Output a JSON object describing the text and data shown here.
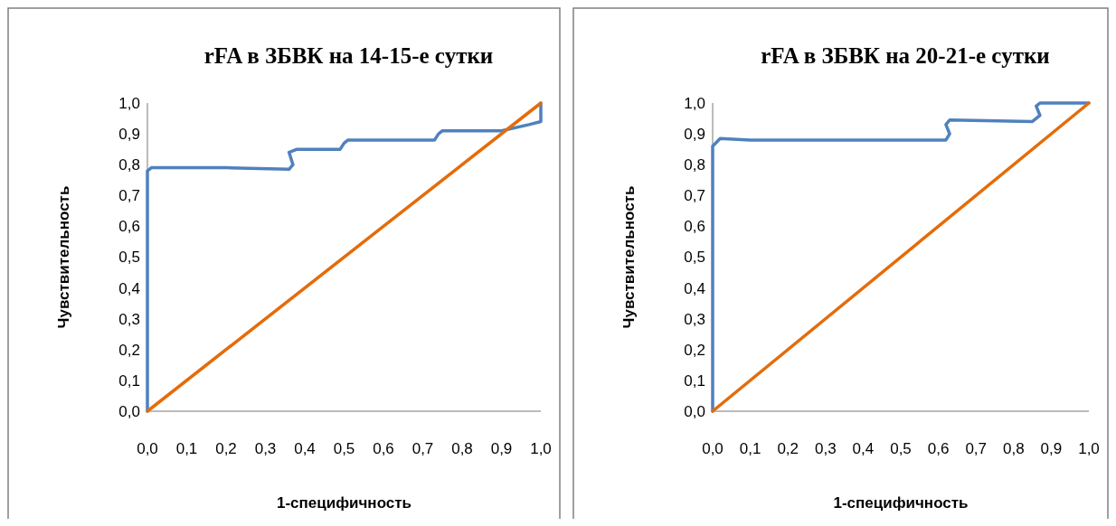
{
  "chart_data": [
    {
      "type": "line",
      "title": "rFA в ЗБВК на 14-15-е сутки",
      "xlabel": "1-специфичность",
      "ylabel": "Чувствительность",
      "xlim": [
        0,
        1
      ],
      "ylim": [
        0,
        1
      ],
      "xticks": [
        {
          "value": 0,
          "label": "0,0"
        },
        {
          "value": 0.1,
          "label": "0,1"
        },
        {
          "value": 0.2,
          "label": "0,2"
        },
        {
          "value": 0.3,
          "label": "0,3"
        },
        {
          "value": 0.4,
          "label": "0,4"
        },
        {
          "value": 0.5,
          "label": "0,5"
        },
        {
          "value": 0.6,
          "label": "0,6"
        },
        {
          "value": 0.7,
          "label": "0,7"
        },
        {
          "value": 0.8,
          "label": "0,8"
        },
        {
          "value": 0.9,
          "label": "0,9"
        },
        {
          "value": 1,
          "label": "1,0"
        }
      ],
      "yticks": [
        {
          "value": 0,
          "label": "0,0"
        },
        {
          "value": 0.1,
          "label": "0,1"
        },
        {
          "value": 0.2,
          "label": "0,2"
        },
        {
          "value": 0.3,
          "label": "0,3"
        },
        {
          "value": 0.4,
          "label": "0,4"
        },
        {
          "value": 0.5,
          "label": "0,5"
        },
        {
          "value": 0.6,
          "label": "0,6"
        },
        {
          "value": 0.7,
          "label": "0,7"
        },
        {
          "value": 0.8,
          "label": "0,8"
        },
        {
          "value": 0.9,
          "label": "0,9"
        },
        {
          "value": 1,
          "label": "1,0"
        }
      ],
      "grid": false,
      "series": [
        {
          "color": "#4f81bd",
          "x": [
            0,
            0,
            0.01,
            0.2,
            0.36,
            0.37,
            0.36,
            0.38,
            0.49,
            0.5,
            0.51,
            0.73,
            0.74,
            0.75,
            0.9,
            0.97,
            1,
            1
          ],
          "values": [
            0,
            0.78,
            0.79,
            0.79,
            0.785,
            0.8,
            0.84,
            0.85,
            0.85,
            0.87,
            0.88,
            0.88,
            0.9,
            0.91,
            0.91,
            0.93,
            0.94,
            1
          ]
        },
        {
          "color": "#e46c0a",
          "x": [
            0,
            1
          ],
          "values": [
            0,
            1
          ]
        }
      ]
    },
    {
      "type": "line",
      "title": "rFA в ЗБВК на 20-21-е сутки",
      "xlabel": "1-специфичность",
      "ylabel": "Чувствительность",
      "xlim": [
        0,
        1
      ],
      "ylim": [
        0,
        1
      ],
      "xticks": [
        {
          "value": 0,
          "label": "0,0"
        },
        {
          "value": 0.1,
          "label": "0,1"
        },
        {
          "value": 0.2,
          "label": "0,2"
        },
        {
          "value": 0.3,
          "label": "0,3"
        },
        {
          "value": 0.4,
          "label": "0,4"
        },
        {
          "value": 0.5,
          "label": "0,5"
        },
        {
          "value": 0.6,
          "label": "0,6"
        },
        {
          "value": 0.7,
          "label": "0,7"
        },
        {
          "value": 0.8,
          "label": "0,8"
        },
        {
          "value": 0.9,
          "label": "0,9"
        },
        {
          "value": 1,
          "label": "1,0"
        }
      ],
      "yticks": [
        {
          "value": 0,
          "label": "0,0"
        },
        {
          "value": 0.1,
          "label": "0,1"
        },
        {
          "value": 0.2,
          "label": "0,2"
        },
        {
          "value": 0.3,
          "label": "0,3"
        },
        {
          "value": 0.4,
          "label": "0,4"
        },
        {
          "value": 0.5,
          "label": "0,5"
        },
        {
          "value": 0.6,
          "label": "0,6"
        },
        {
          "value": 0.7,
          "label": "0,7"
        },
        {
          "value": 0.8,
          "label": "0,8"
        },
        {
          "value": 0.9,
          "label": "0,9"
        },
        {
          "value": 1,
          "label": "1,0"
        }
      ],
      "grid": false,
      "series": [
        {
          "color": "#4f81bd",
          "x": [
            0,
            0,
            0.02,
            0.1,
            0.55,
            0.62,
            0.63,
            0.62,
            0.63,
            0.85,
            0.87,
            0.86,
            0.87,
            1
          ],
          "values": [
            0,
            0.86,
            0.885,
            0.88,
            0.88,
            0.88,
            0.9,
            0.93,
            0.945,
            0.94,
            0.96,
            0.99,
            1,
            1
          ]
        },
        {
          "color": "#e46c0a",
          "x": [
            0,
            1
          ],
          "values": [
            0,
            1
          ]
        }
      ]
    }
  ]
}
